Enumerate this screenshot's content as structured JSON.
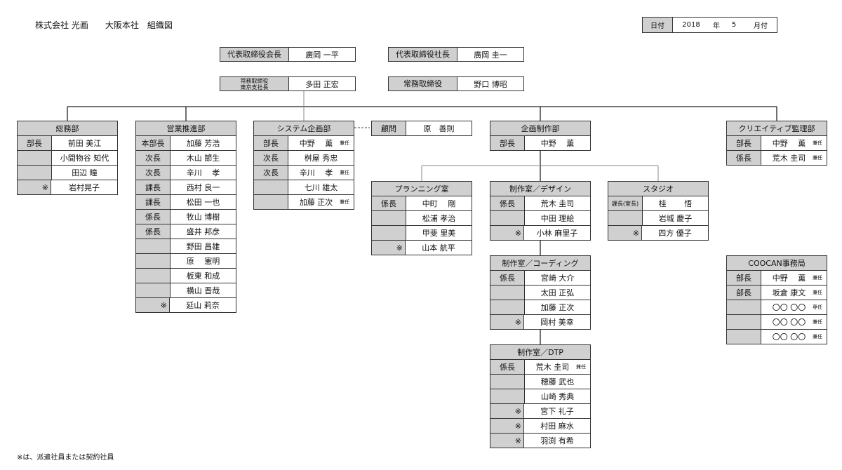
{
  "header": {
    "title": "株式会社 光画　　大阪本社　組織図"
  },
  "date": {
    "label": "日付",
    "year": "2018",
    "year_unit": "年",
    "month": "5",
    "month_unit": "月付"
  },
  "executives": [
    {
      "role": "代表取締役会長",
      "name": "廣岡 一平"
    },
    {
      "role": "代表取締役社長",
      "name": "廣岡 圭一"
    },
    {
      "role": "常務取締役\n東京支社長",
      "name": "多田 正宏"
    },
    {
      "role": "常務取締役",
      "name": "野口 博昭"
    }
  ],
  "departments": {
    "somu": {
      "title": "総務部",
      "rows": [
        {
          "role": "部長",
          "name": "前田 美江"
        },
        {
          "role": "",
          "name": "小間物谷 知代"
        },
        {
          "role": "",
          "name": "田辺 瞳"
        },
        {
          "role": "※",
          "name": "岩村晃子"
        }
      ]
    },
    "eigyo": {
      "title": "営業推進部",
      "rows": [
        {
          "role": "本部長",
          "name": "加藤 芳浩"
        },
        {
          "role": "次長",
          "name": "木山 節生"
        },
        {
          "role": "次長",
          "name": "辛川　 孝"
        },
        {
          "role": "課長",
          "name": "西村 良一"
        },
        {
          "role": "課長",
          "name": "松田 一也"
        },
        {
          "role": "係長",
          "name": "牧山 博樹"
        },
        {
          "role": "係長",
          "name": "盛井 邦彦"
        },
        {
          "role": "",
          "name": "野田 昌雄"
        },
        {
          "role": "",
          "name": "原　 憲明"
        },
        {
          "role": "",
          "name": "板東 和成"
        },
        {
          "role": "",
          "name": "横山 晋哉"
        },
        {
          "role": "※",
          "name": "延山 莉奈"
        }
      ]
    },
    "system": {
      "title": "システム企画部",
      "rows": [
        {
          "role": "部長",
          "name": "中野　 薫",
          "note": "兼任"
        },
        {
          "role": "次長",
          "name": "桝屋 秀忠"
        },
        {
          "role": "次長",
          "name": "辛川　 孝",
          "note": "兼任"
        },
        {
          "role": "",
          "name": "七川 雄太"
        },
        {
          "role": "",
          "name": "加藤 正次",
          "note": "兼任"
        }
      ]
    },
    "komon": {
      "title": "",
      "rows": [
        {
          "role": "顧問",
          "name": "原　善則"
        }
      ]
    },
    "kikaku": {
      "title": "企画制作部",
      "rows": [
        {
          "role": "部長",
          "name": "中野　 薫"
        }
      ]
    },
    "planning": {
      "title": "プランニング室",
      "rows": [
        {
          "role": "係長",
          "name": "中町　 剛"
        },
        {
          "role": "",
          "name": "松浦 孝治"
        },
        {
          "role": "",
          "name": "甲斐 里美"
        },
        {
          "role": "※",
          "name": "山本 航平"
        }
      ]
    },
    "design": {
      "title": "制作室／デザイン",
      "rows": [
        {
          "role": "係長",
          "name": "荒木 圭司"
        },
        {
          "role": "",
          "name": "中田 理絵"
        },
        {
          "role": "※",
          "name": "小林 麻里子"
        }
      ]
    },
    "studio": {
      "title": "スタジオ",
      "rows": [
        {
          "role": "課長(室長)",
          "name": "桂　　 悟"
        },
        {
          "role": "",
          "name": "岩城 慶子"
        },
        {
          "role": "※",
          "name": "四方 優子"
        }
      ]
    },
    "coding": {
      "title": "制作室／コーディング",
      "rows": [
        {
          "role": "係長",
          "name": "宮崎 大介"
        },
        {
          "role": "",
          "name": "太田 正弘"
        },
        {
          "role": "",
          "name": "加藤 正次"
        },
        {
          "role": "※",
          "name": "岡村 美幸"
        }
      ]
    },
    "dtp": {
      "title": "制作室／DTP",
      "rows": [
        {
          "role": "係長",
          "name": "荒木 圭司",
          "note": "兼任"
        },
        {
          "role": "",
          "name": "穂藤 武也"
        },
        {
          "role": "",
          "name": "山崎 秀典"
        },
        {
          "role": "※",
          "name": "宮下 礼子"
        },
        {
          "role": "※",
          "name": "村田 麻水"
        },
        {
          "role": "※",
          "name": "羽渕 有希"
        }
      ]
    },
    "creative": {
      "title": "クリエイティブ監理部",
      "rows": [
        {
          "role": "部長",
          "name": "中野　 薫",
          "note": "兼任"
        },
        {
          "role": "係長",
          "name": "荒木 圭司",
          "note": "兼任"
        }
      ]
    },
    "coocan": {
      "title": "COOCAN事務局",
      "rows": [
        {
          "role": "部長",
          "name": "中野　 薫",
          "note": "兼任"
        },
        {
          "role": "部長",
          "name": "坂倉 康文",
          "note": "兼任"
        },
        {
          "role": "",
          "name": "〇〇 〇〇",
          "note": "専任"
        },
        {
          "role": "",
          "name": "〇〇 〇〇",
          "note": "兼任"
        },
        {
          "role": "",
          "name": "〇〇 〇〇",
          "note": "兼任"
        }
      ]
    }
  },
  "footer": {
    "note": "※は、派遣社員または契約社員"
  }
}
